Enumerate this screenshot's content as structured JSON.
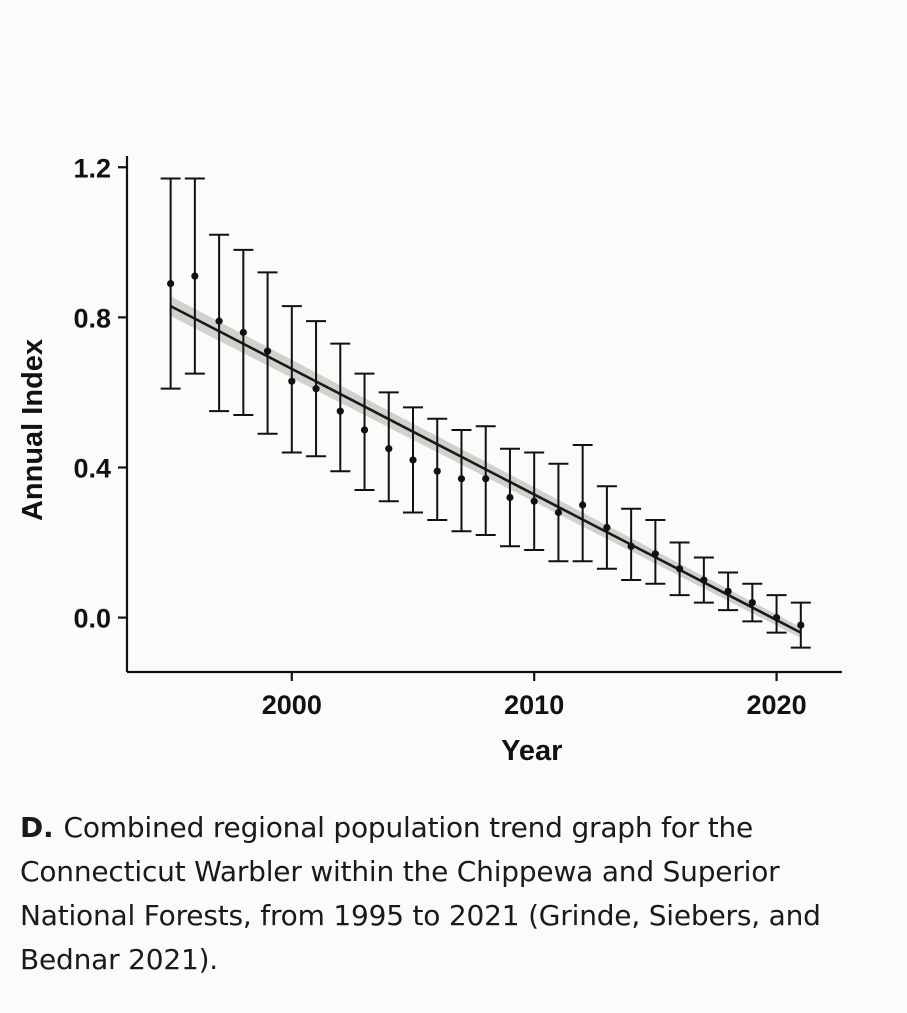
{
  "chart_data": {
    "type": "scatter",
    "title": "",
    "xlabel": "Year",
    "ylabel": "Annual Index",
    "xlim": [
      1993.2,
      2022.7
    ],
    "ylim": [
      -0.145,
      1.23
    ],
    "x_ticks": [
      2000,
      2010,
      2020
    ],
    "y_ticks": [
      1.2,
      0.8,
      0.4,
      0.0
    ],
    "x_tick_labels": [
      "2000",
      "2010",
      "2020"
    ],
    "y_tick_labels": [
      "1.2",
      "0.8",
      "0.4",
      "0.0"
    ],
    "grid": false,
    "legend": "none",
    "points": {
      "x": [
        1995,
        1996,
        1997,
        1998,
        1999,
        2000,
        2001,
        2002,
        2003,
        2004,
        2005,
        2006,
        2007,
        2008,
        2009,
        2010,
        2011,
        2012,
        2013,
        2014,
        2015,
        2016,
        2017,
        2018,
        2019,
        2020,
        2021
      ],
      "y": [
        0.89,
        0.91,
        0.79,
        0.76,
        0.71,
        0.63,
        0.61,
        0.55,
        0.5,
        0.45,
        0.42,
        0.39,
        0.37,
        0.37,
        0.32,
        0.31,
        0.28,
        0.3,
        0.24,
        0.19,
        0.17,
        0.13,
        0.1,
        0.07,
        0.04,
        0.0,
        -0.02
      ],
      "lower": [
        0.61,
        0.65,
        0.55,
        0.54,
        0.49,
        0.44,
        0.43,
        0.39,
        0.34,
        0.31,
        0.28,
        0.26,
        0.23,
        0.22,
        0.19,
        0.18,
        0.15,
        0.15,
        0.13,
        0.1,
        0.09,
        0.06,
        0.04,
        0.02,
        -0.01,
        -0.04,
        -0.08
      ],
      "upper": [
        1.17,
        1.17,
        1.02,
        0.98,
        0.92,
        0.83,
        0.79,
        0.73,
        0.65,
        0.6,
        0.56,
        0.53,
        0.5,
        0.51,
        0.45,
        0.44,
        0.41,
        0.46,
        0.35,
        0.29,
        0.26,
        0.2,
        0.16,
        0.12,
        0.09,
        0.06,
        0.04
      ]
    },
    "trend": {
      "x": [
        1995,
        2021
      ],
      "y": [
        0.83,
        -0.04
      ],
      "band_halfwidth": 0.012,
      "color": "#1a1a1a",
      "band_color": "#c9c9c6"
    }
  },
  "caption": {
    "letter": "D.",
    "text": "Combined regional population trend graph for the Connecticut Warbler within the Chippewa and Superior National Forests, from 1995 to 2021 (Grinde, Siebers, and Bednar 2021)."
  }
}
